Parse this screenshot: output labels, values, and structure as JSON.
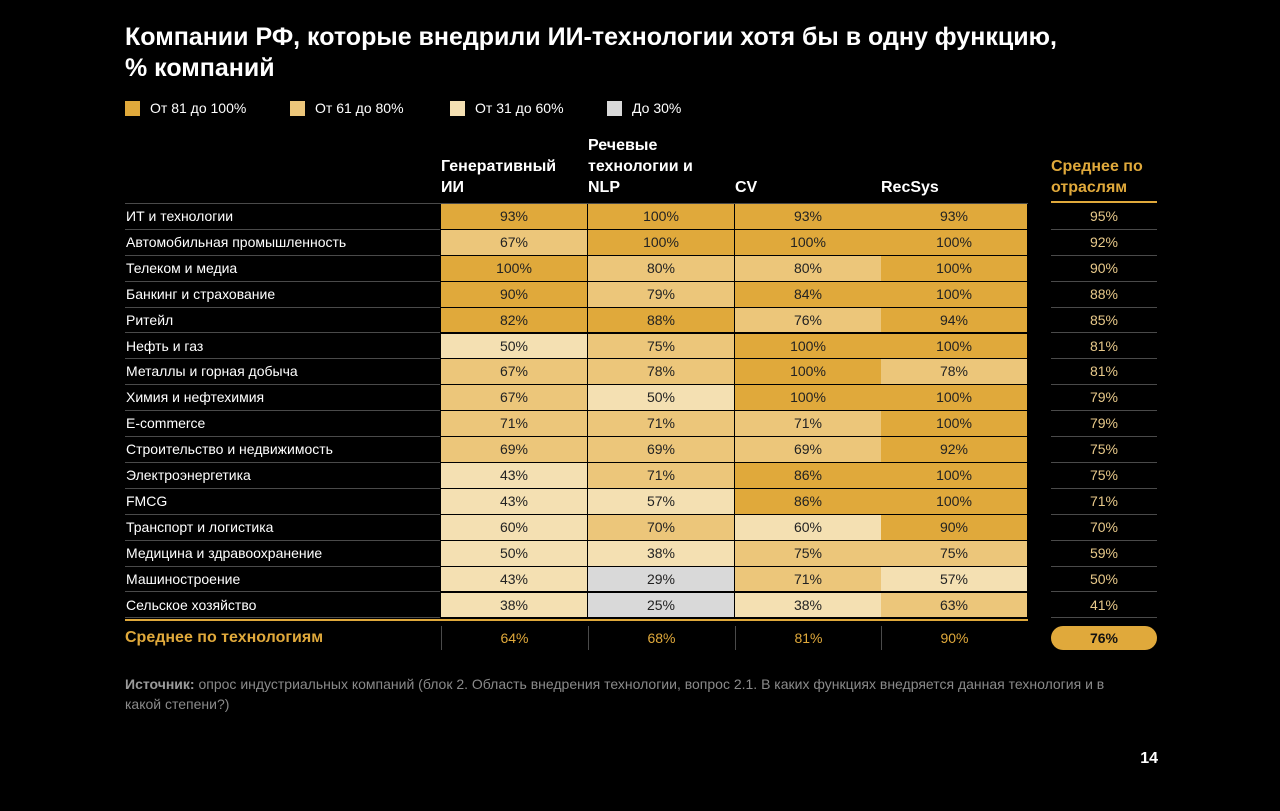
{
  "title": "Компании РФ, которые внедрили ИИ-технологии хотя бы в одну функцию, % компаний",
  "legend": [
    {
      "label": "От 81 до 100%",
      "color": "#e0a93b"
    },
    {
      "label": "От 61 до 80%",
      "color": "#ecc67a"
    },
    {
      "label": "От 31 до 60%",
      "color": "#f4e0b2"
    },
    {
      "label": "До 30%",
      "color": "#d9d9d9"
    }
  ],
  "table": {
    "columns": [
      "Генеративный ИИ",
      "Речевые технологии и NLP",
      "CV",
      "RecSys"
    ],
    "average_header": "Среднее по отраслям",
    "rows": [
      {
        "label": "ИТ и технологии",
        "values": [
          "93%",
          "100%",
          "93%",
          "93%"
        ],
        "average": "95%"
      },
      {
        "label": "Автомобильная промышленность",
        "values": [
          "67%",
          "100%",
          "100%",
          "100%"
        ],
        "average": "92%"
      },
      {
        "label": "Телеком и медиа",
        "values": [
          "100%",
          "80%",
          "80%",
          "100%"
        ],
        "average": "90%"
      },
      {
        "label": "Банкинг и страхование",
        "values": [
          "90%",
          "79%",
          "84%",
          "100%"
        ],
        "average": "88%"
      },
      {
        "label": "Ритейл",
        "values": [
          "82%",
          "88%",
          "76%",
          "94%"
        ],
        "average": "85%"
      },
      {
        "label": "Нефть и газ",
        "values": [
          "50%",
          "75%",
          "100%",
          "100%"
        ],
        "average": "81%"
      },
      {
        "label": "Металлы и горная добыча",
        "values": [
          "67%",
          "78%",
          "100%",
          "78%"
        ],
        "average": "81%"
      },
      {
        "label": "Химия и нефтехимия",
        "values": [
          "67%",
          "50%",
          "100%",
          "100%"
        ],
        "average": "79%"
      },
      {
        "label": "E-commerce",
        "values": [
          "71%",
          "71%",
          "71%",
          "100%"
        ],
        "average": "79%"
      },
      {
        "label": "Строительство и недвижимость",
        "values": [
          "69%",
          "69%",
          "69%",
          "92%"
        ],
        "average": "75%"
      },
      {
        "label": "Электроэнергетика",
        "values": [
          "43%",
          "71%",
          "86%",
          "100%"
        ],
        "average": "75%"
      },
      {
        "label": "FMCG",
        "values": [
          "43%",
          "57%",
          "86%",
          "100%"
        ],
        "average": "71%"
      },
      {
        "label": "Транспорт и логистика",
        "values": [
          "60%",
          "70%",
          "60%",
          "90%"
        ],
        "average": "70%"
      },
      {
        "label": "Медицина и здравоохранение",
        "values": [
          "50%",
          "38%",
          "75%",
          "75%"
        ],
        "average": "59%"
      },
      {
        "label": "Машиностроение",
        "values": [
          "43%",
          "29%",
          "71%",
          "57%"
        ],
        "average": "50%"
      },
      {
        "label": "Сельское хозяйство",
        "values": [
          "38%",
          "25%",
          "38%",
          "63%"
        ],
        "average": "41%"
      }
    ],
    "footer": {
      "label": "Среднее по технологиям",
      "values": [
        "64%",
        "68%",
        "81%",
        "90%"
      ],
      "average": "76%"
    }
  },
  "source": {
    "label": "Источник:",
    "text": "опрос индустриальных компаний (блок 2. Область внедрения технологии, вопрос 2.1. В каких функциях внедряется данная технология и в какой степени?)"
  },
  "page_number": "14"
}
